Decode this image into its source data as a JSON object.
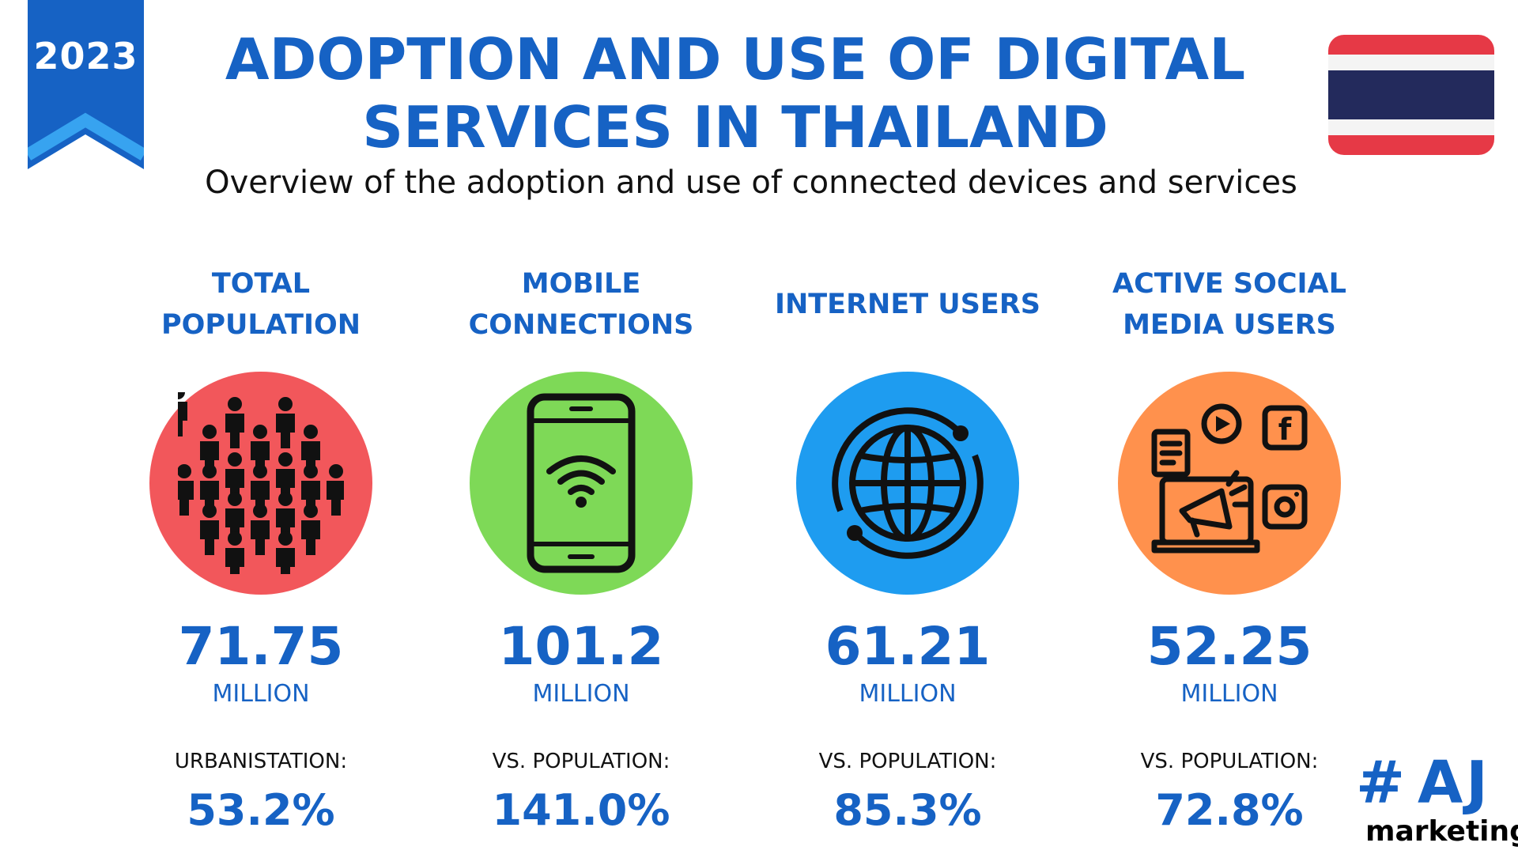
{
  "badge": {
    "year": "2023"
  },
  "header": {
    "title_line1": "ADOPTION AND USE OF DIGITAL",
    "title_line2": "SERVICES IN THAILAND",
    "subtitle": "Overview of the adoption and use of connected devices and services"
  },
  "flag": {
    "name": "thailand-flag",
    "colors": [
      "#e63946",
      "#ffffff",
      "#232a5c"
    ]
  },
  "colors": {
    "accent": "#1662c4",
    "population": "#f2575b",
    "mobile": "#7ed957",
    "internet": "#1e9cf0",
    "social": "#ff914d"
  },
  "stats": [
    {
      "title_line1": "TOTAL",
      "title_line2": "POPULATION",
      "icon": "people-crowd-icon",
      "value": "71.75",
      "unit": "MILLION",
      "compare_label": "URBANISTATION:",
      "compare_value": "53.2%"
    },
    {
      "title_line1": "MOBILE",
      "title_line2": "CONNECTIONS",
      "icon": "smartphone-wifi-icon",
      "value": "101.2",
      "unit": "MILLION",
      "compare_label": "VS. POPULATION:",
      "compare_value": "141.0%"
    },
    {
      "title_line1": "INTERNET USERS",
      "title_line2": "",
      "icon": "globe-icon",
      "value": "61.21",
      "unit": "MILLION",
      "compare_label": "VS. POPULATION:",
      "compare_value": "85.3%"
    },
    {
      "title_line1": "ACTIVE SOCIAL",
      "title_line2": "MEDIA USERS",
      "icon": "social-media-megaphone-icon",
      "value": "52.25",
      "unit": "MILLION",
      "compare_label": "VS. POPULATION:",
      "compare_value": "72.8%"
    }
  ],
  "logo": {
    "mark": "#",
    "letters": "AJ",
    "word": "marketing"
  }
}
